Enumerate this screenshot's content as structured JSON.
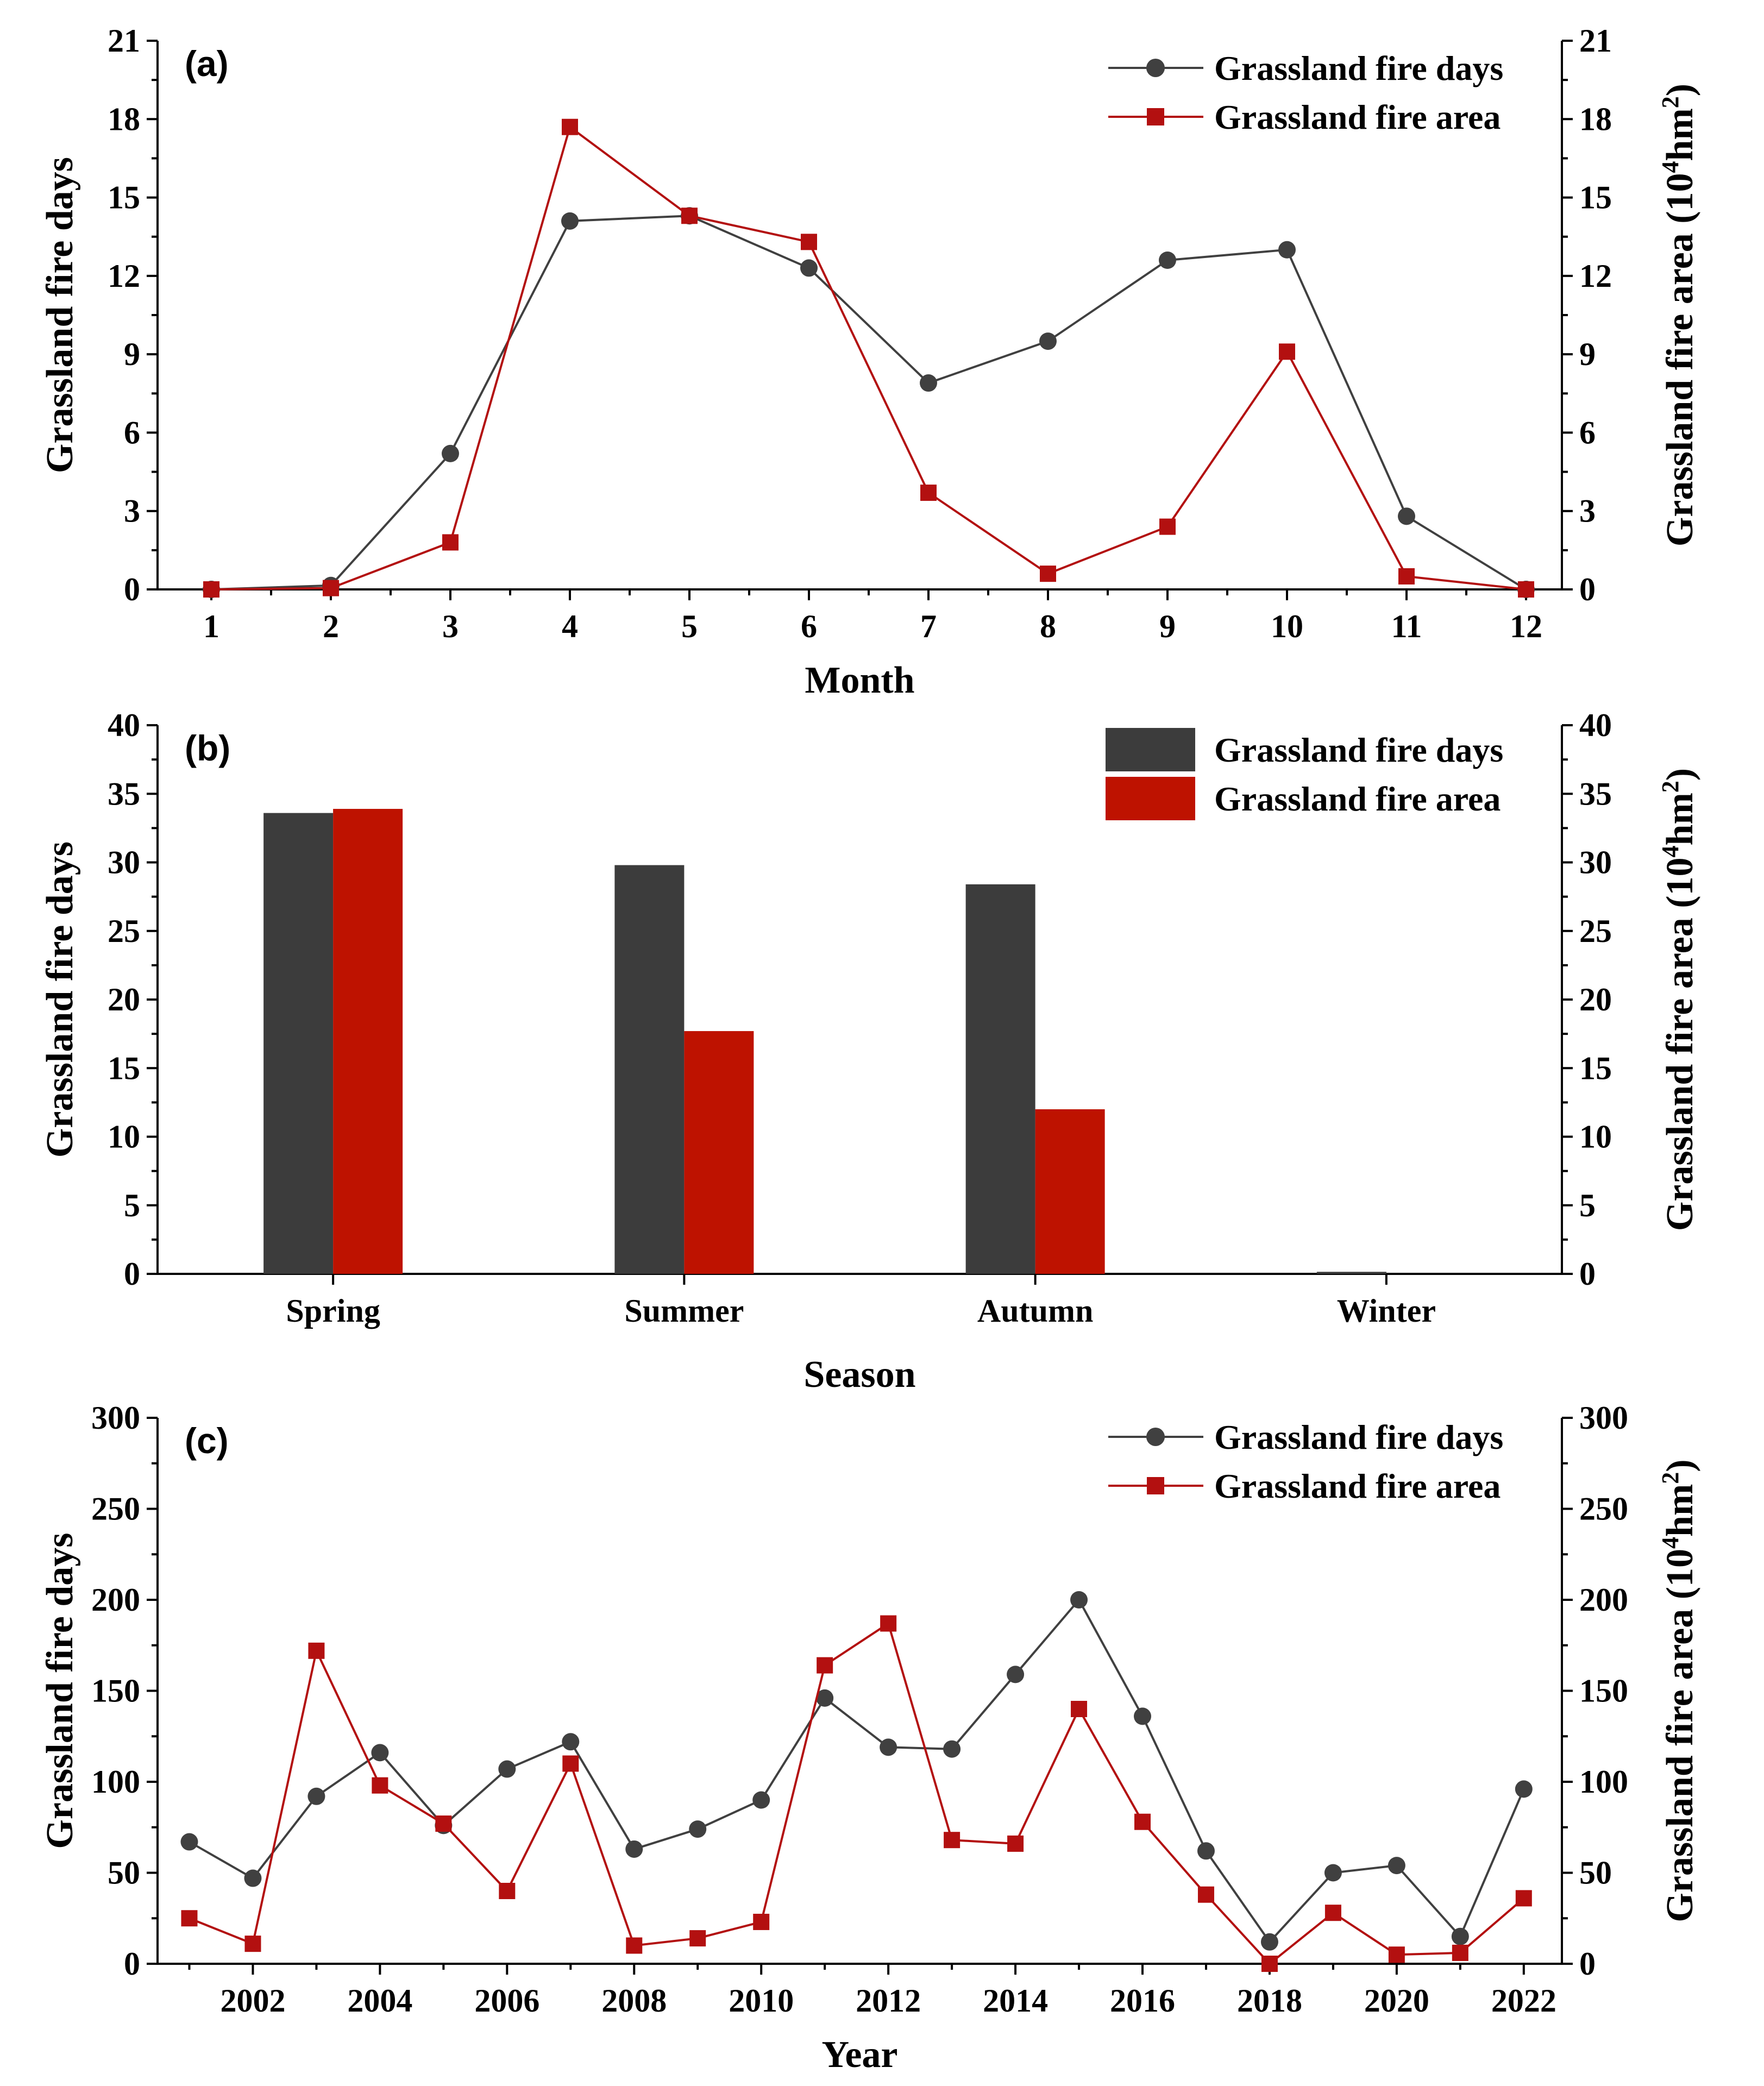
{
  "colors": {
    "days": "#404040",
    "area": "#B31010",
    "bar_days": "#3C3C3C",
    "bar_area": "#BE1200"
  },
  "chart_data": [
    {
      "panel": "(a)",
      "type": "line",
      "xlabel": "Month",
      "ylabel": "Grassland fire days",
      "y2label": "Grassland fire area (10",
      "y2label_sup": "4",
      "y2label_unit": "hm",
      "y2label_sup2": "2",
      "y2label_end": ")",
      "x": [
        1,
        2,
        3,
        4,
        5,
        6,
        7,
        8,
        9,
        10,
        11,
        12
      ],
      "ylim": [
        0,
        21
      ],
      "yticks": [
        0,
        3,
        6,
        9,
        12,
        15,
        18,
        21
      ],
      "y2lim": [
        0,
        21
      ],
      "y2ticks": [
        0,
        3,
        6,
        9,
        12,
        15,
        18,
        21
      ],
      "legend_position": "top-right",
      "series": [
        {
          "name": "Grassland fire days",
          "axis": "left",
          "marker": "circle",
          "values": [
            0.0,
            0.15,
            5.2,
            14.1,
            14.3,
            12.3,
            7.9,
            9.5,
            12.6,
            13.0,
            2.8,
            0.0
          ]
        },
        {
          "name": "Grassland fire area",
          "axis": "right",
          "marker": "square",
          "values": [
            0.0,
            0.05,
            1.8,
            17.7,
            14.3,
            13.3,
            3.7,
            0.6,
            2.4,
            9.1,
            0.5,
            0.0
          ]
        }
      ]
    },
    {
      "panel": "(b)",
      "type": "bar",
      "xlabel": "Season",
      "ylabel": "Grassland fire days",
      "y2label": "Grassland fire area (10",
      "y2label_sup": "4",
      "y2label_unit": "hm",
      "y2label_sup2": "2",
      "y2label_end": ")",
      "categories": [
        "Spring",
        "Summer",
        "Autumn",
        "Winter"
      ],
      "ylim": [
        0,
        40
      ],
      "yticks": [
        0,
        5,
        10,
        15,
        20,
        25,
        30,
        35,
        40
      ],
      "y2lim": [
        0,
        40
      ],
      "y2ticks": [
        0,
        5,
        10,
        15,
        20,
        25,
        30,
        35,
        40
      ],
      "legend_position": "top-right",
      "series": [
        {
          "name": "Grassland fire days",
          "axis": "left",
          "values": [
            33.6,
            29.8,
            28.4,
            0.15
          ]
        },
        {
          "name": "Grassland fire area",
          "axis": "right",
          "values": [
            33.9,
            17.7,
            12.0,
            0.0
          ]
        }
      ]
    },
    {
      "panel": "(c)",
      "type": "line",
      "xlabel": "Year",
      "ylabel": "Grassland fire days",
      "y2label": "Grassland fire area (10",
      "y2label_sup": "4",
      "y2label_unit": "hm",
      "y2label_sup2": "2",
      "y2label_end": ")",
      "x": [
        2001,
        2002,
        2003,
        2004,
        2005,
        2006,
        2007,
        2008,
        2009,
        2010,
        2011,
        2012,
        2013,
        2014,
        2015,
        2016,
        2017,
        2018,
        2019,
        2020,
        2021,
        2022
      ],
      "xticks": [
        2002,
        2004,
        2006,
        2008,
        2010,
        2012,
        2014,
        2016,
        2018,
        2020,
        2022
      ],
      "xlim": [
        2000.5,
        2022.6
      ],
      "ylim": [
        0,
        300
      ],
      "yticks": [
        0,
        50,
        100,
        150,
        200,
        250,
        300
      ],
      "y2lim": [
        0,
        300
      ],
      "y2ticks": [
        0,
        50,
        100,
        150,
        200,
        250,
        300
      ],
      "legend_position": "top-right",
      "series": [
        {
          "name": "Grassland fire days",
          "axis": "left",
          "marker": "circle",
          "values": [
            67,
            47,
            92,
            116,
            76,
            107,
            122,
            63,
            74,
            90,
            146,
            119,
            118,
            159,
            200,
            136,
            62,
            12,
            50,
            54,
            15,
            96
          ]
        },
        {
          "name": "Grassland fire area",
          "axis": "right",
          "marker": "square",
          "values": [
            25,
            11,
            172,
            98,
            77,
            40,
            110,
            10,
            14,
            23,
            164,
            187,
            68,
            66,
            140,
            78,
            38,
            0,
            28,
            5,
            6,
            36
          ]
        }
      ]
    }
  ]
}
